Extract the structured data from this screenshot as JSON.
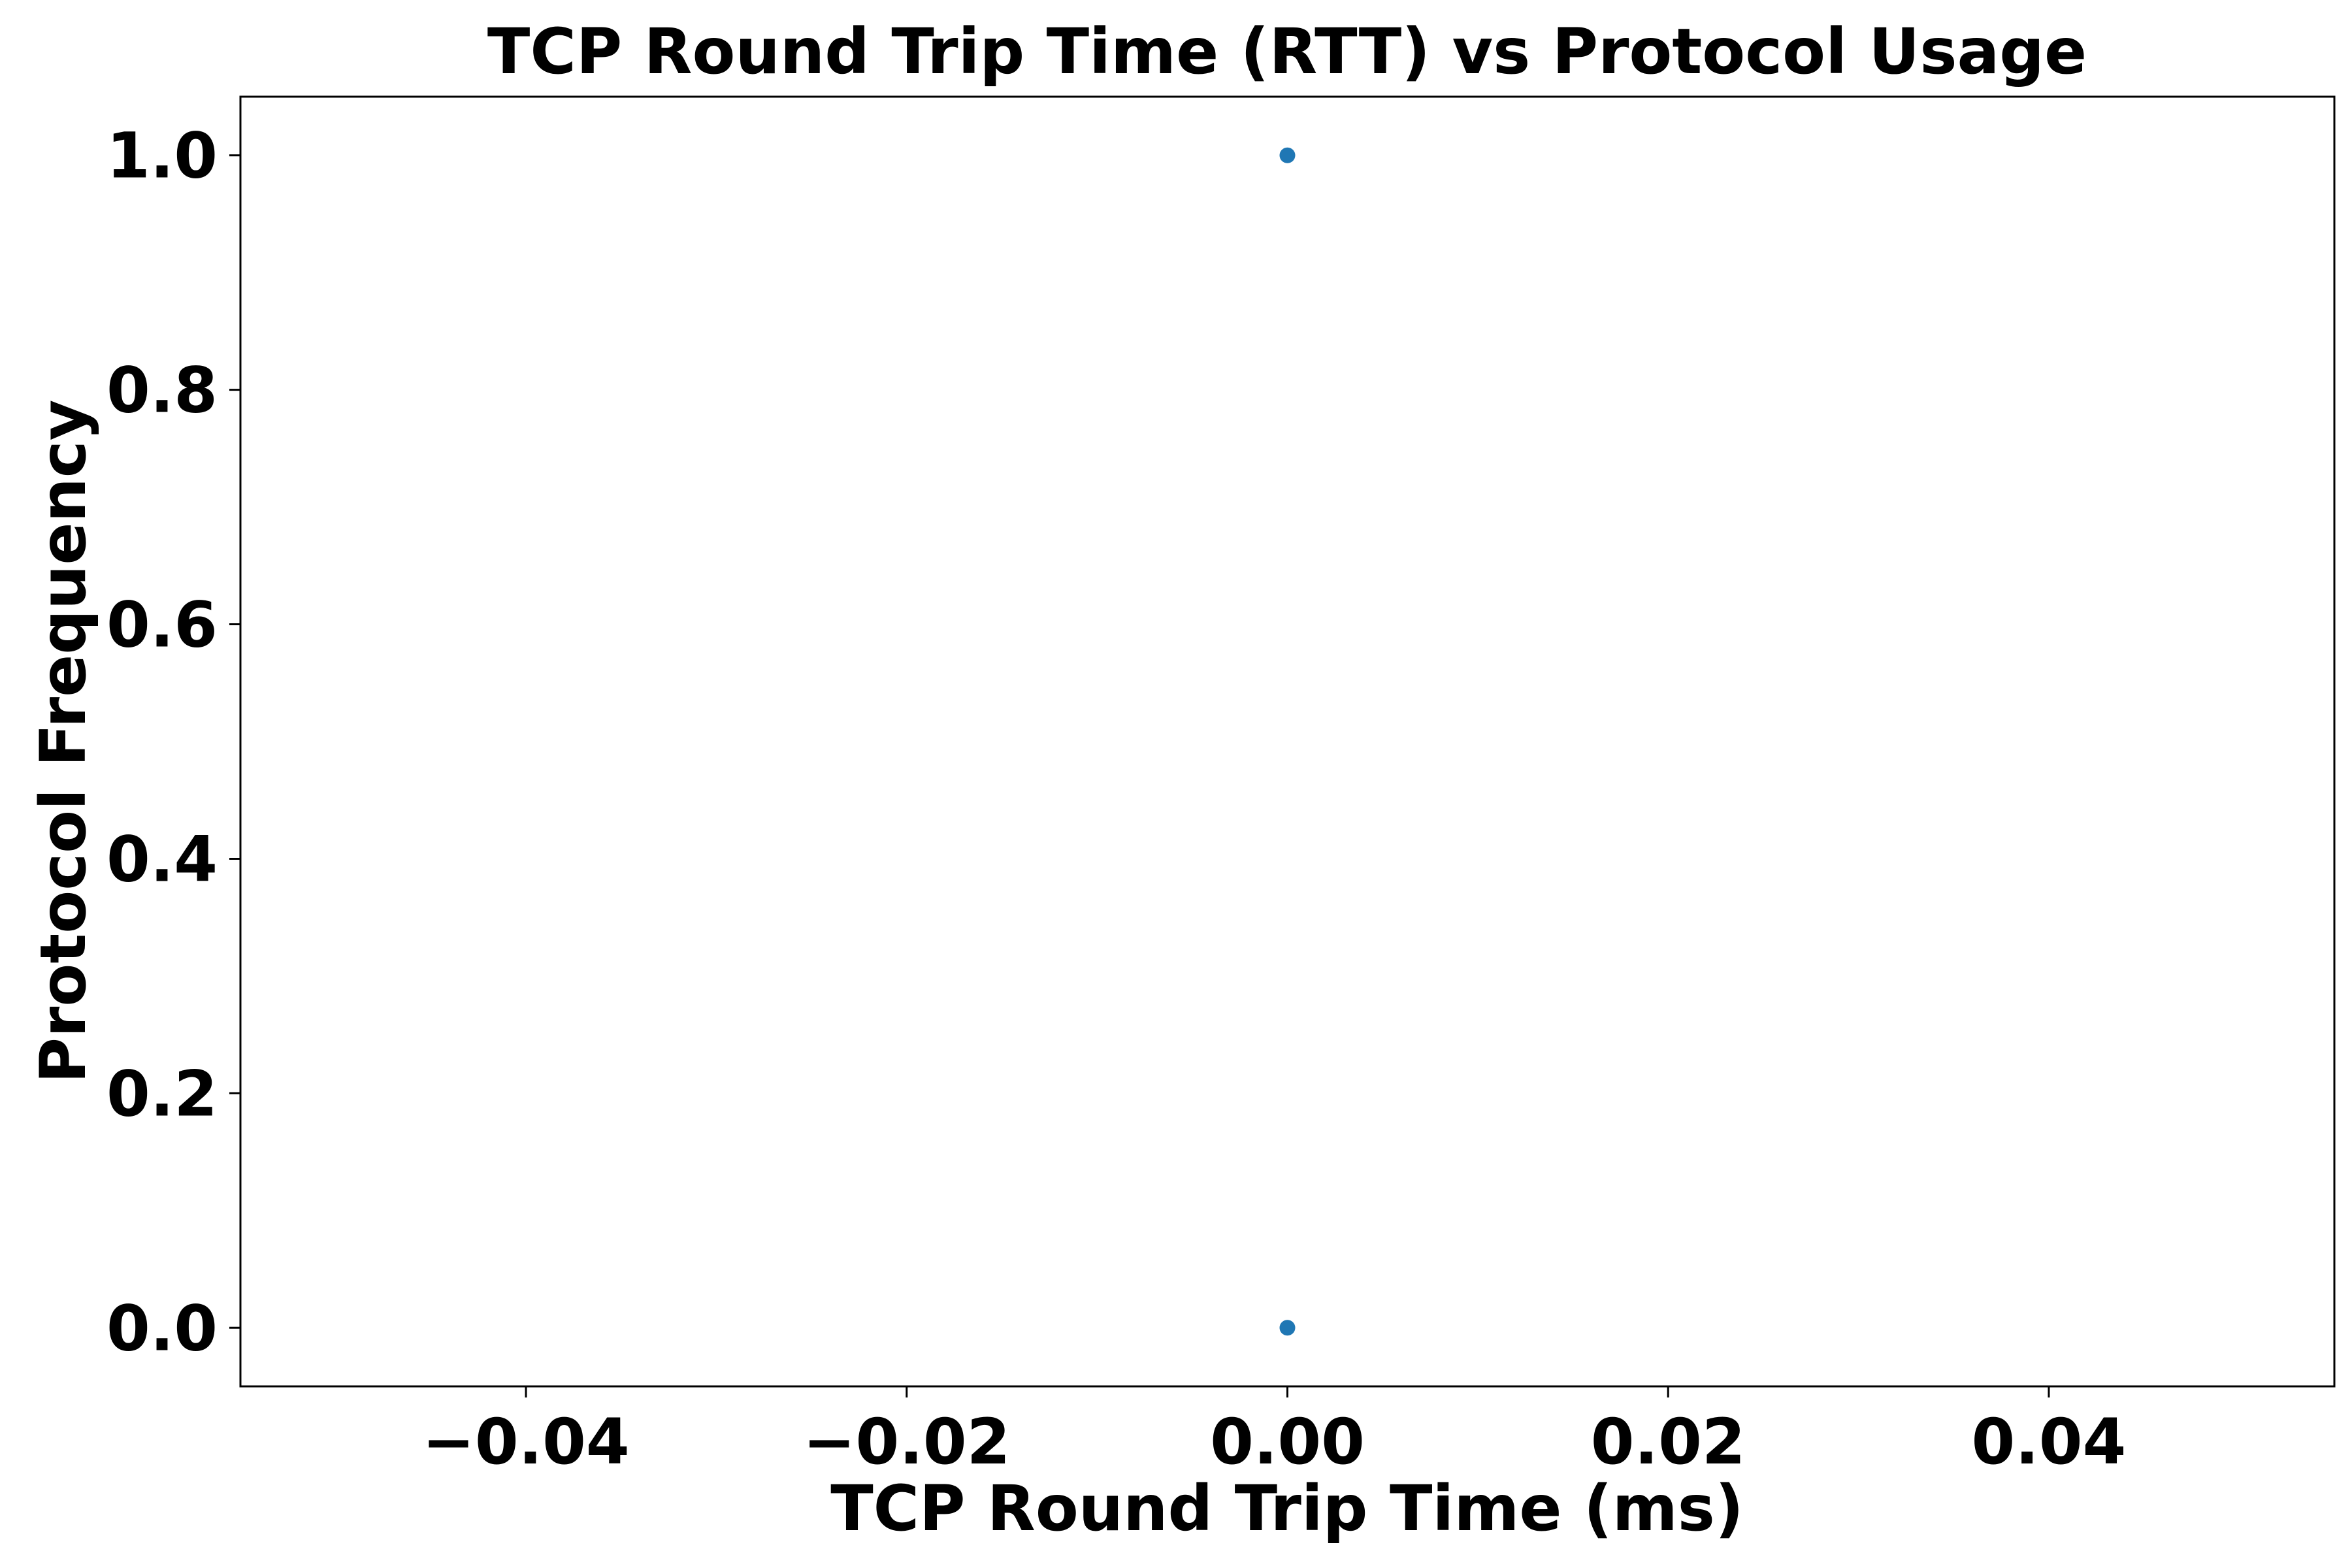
{
  "chart_data": {
    "type": "scatter",
    "title": "TCP Round Trip Time (RTT) vs Protocol Usage",
    "xlabel": "TCP Round Trip Time (ms)",
    "ylabel": "Protocol Frequency",
    "xlim": [
      -0.055,
      0.055
    ],
    "ylim": [
      -0.05,
      1.05
    ],
    "xticks": [
      -0.04,
      -0.02,
      0.0,
      0.02,
      0.04
    ],
    "xtick_labels": [
      "−0.04",
      "−0.02",
      "0.00",
      "0.02",
      "0.04"
    ],
    "yticks": [
      0.0,
      0.2,
      0.4,
      0.6,
      0.8,
      1.0
    ],
    "ytick_labels": [
      "0.0",
      "0.2",
      "0.4",
      "0.6",
      "0.8",
      "1.0"
    ],
    "grid": false,
    "legend": false,
    "marker_color": "#1f77b4",
    "series": [
      {
        "x": [
          0.0,
          0.0
        ],
        "y": [
          1.0,
          0.0
        ]
      }
    ]
  }
}
